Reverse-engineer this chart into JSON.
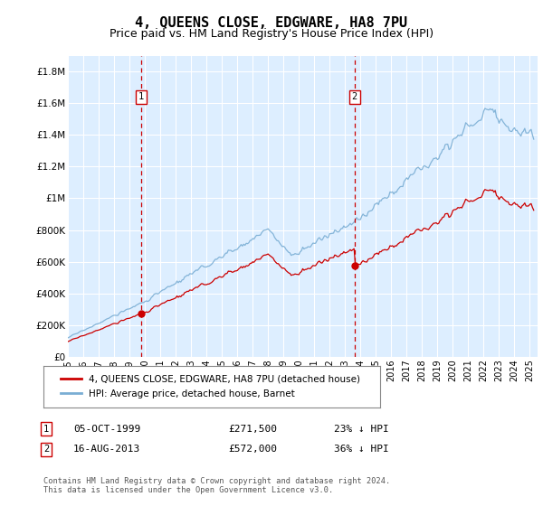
{
  "title": "4, QUEENS CLOSE, EDGWARE, HA8 7PU",
  "subtitle": "Price paid vs. HM Land Registry's House Price Index (HPI)",
  "ylabel_ticks": [
    "£0",
    "£200K",
    "£400K",
    "£600K",
    "£800K",
    "£1M",
    "£1.2M",
    "£1.4M",
    "£1.6M",
    "£1.8M"
  ],
  "ytick_values": [
    0,
    200000,
    400000,
    600000,
    800000,
    1000000,
    1200000,
    1400000,
    1600000,
    1800000
  ],
  "ylim": [
    0,
    1900000
  ],
  "xlim_start": 1995.0,
  "xlim_end": 2025.5,
  "hpi_color": "#7aaed4",
  "price_color": "#cc0000",
  "marker1_date": 1999.76,
  "marker2_date": 2013.62,
  "marker1_price": 271500,
  "marker2_price": 572000,
  "legend_label1": "4, QUEENS CLOSE, EDGWARE, HA8 7PU (detached house)",
  "legend_label2": "HPI: Average price, detached house, Barnet",
  "annotation1_text": "05-OCT-1999",
  "annotation1_price": "£271,500",
  "annotation1_note": "23% ↓ HPI",
  "annotation2_text": "16-AUG-2013",
  "annotation2_price": "£572,000",
  "annotation2_note": "36% ↓ HPI",
  "footer": "Contains HM Land Registry data © Crown copyright and database right 2024.\nThis data is licensed under the Open Government Licence v3.0.",
  "plot_bg_color": "#ddeeff",
  "title_fontsize": 11,
  "subtitle_fontsize": 9
}
